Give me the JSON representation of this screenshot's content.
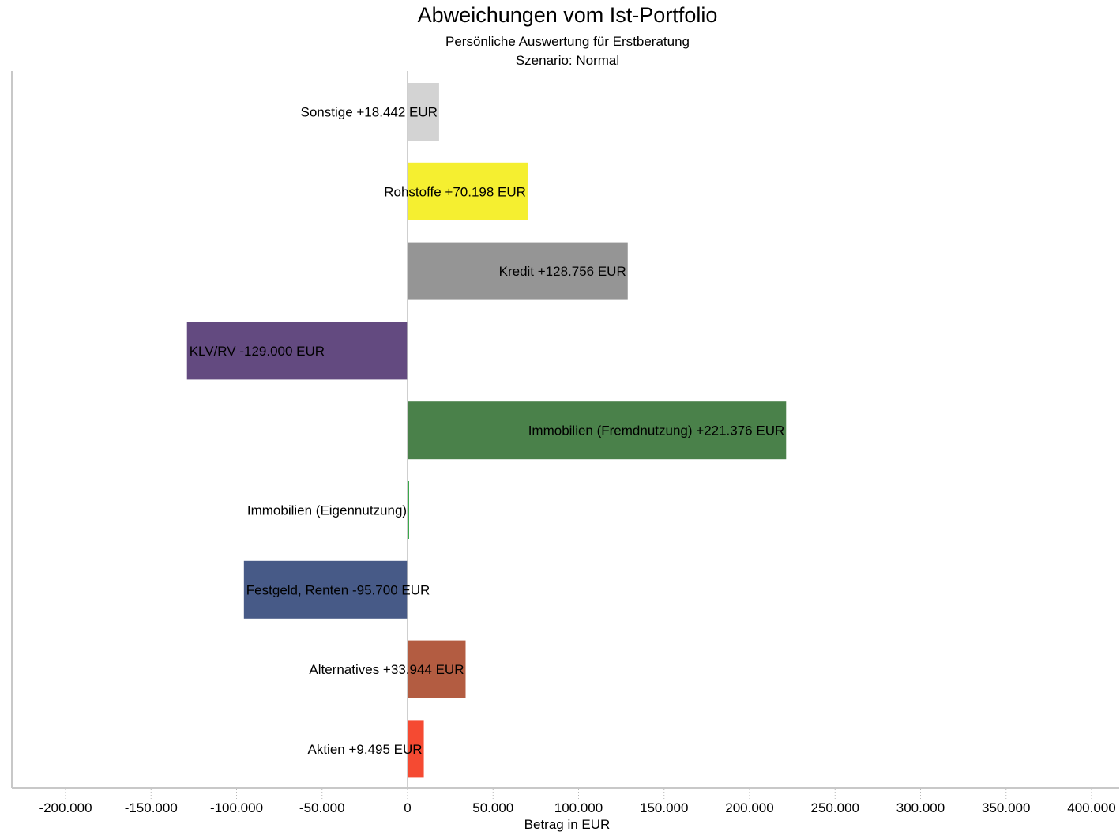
{
  "chart_data": {
    "type": "bar",
    "orientation": "horizontal",
    "title": "Abweichungen vom Ist-Portfolio",
    "subtitle": "Persönliche Auswertung für Erstberatung",
    "scenario": "Szenario: Normal",
    "xlabel": "Betrag in EUR",
    "ylabel": "",
    "xlim": [
      -200000,
      400000
    ],
    "xticks": [
      -200000,
      -150000,
      -100000,
      -50000,
      0,
      50000,
      100000,
      150000,
      200000,
      250000,
      300000,
      350000,
      400000
    ],
    "xtick_labels": [
      "-200.000",
      "-150.000",
      "-100.000",
      "-50.000",
      "0",
      "50.000",
      "100.000",
      "150.000",
      "200.000",
      "250.000",
      "300.000",
      "350.000",
      "400.000"
    ],
    "grid": "dotted tick marks below x-axis",
    "legend": "none",
    "categories": [
      "Sonstige",
      "Rohstoffe",
      "Kredit",
      "KLV/RV",
      "Immobilien (Fremdnutzung)",
      "Immobilien (Eigennutzung)",
      "Festgeld, Renten",
      "Alternatives",
      "Aktien"
    ],
    "values": [
      18442,
      70198,
      128756,
      -129000,
      221376,
      500,
      -95700,
      33944,
      9495
    ],
    "labels": [
      "Sonstige +18.442 EUR",
      "Rohstoffe +70.198 EUR",
      "Kredit +128.756 EUR",
      "KLV/RV -129.000 EUR",
      "Immobilien (Fremdnutzung) +221.376 EUR",
      "Immobilien (Eigennutzung)",
      "Festgeld, Renten -95.700 EUR",
      "Alternatives +33.944 EUR",
      "Aktien +9.495 EUR"
    ],
    "colors": [
      "#d3d3d3",
      "#f5ef30",
      "#959595",
      "#634a80",
      "#4a814a",
      "#3aa84a",
      "#475a87",
      "#b35c41",
      "#f54a32"
    ]
  }
}
